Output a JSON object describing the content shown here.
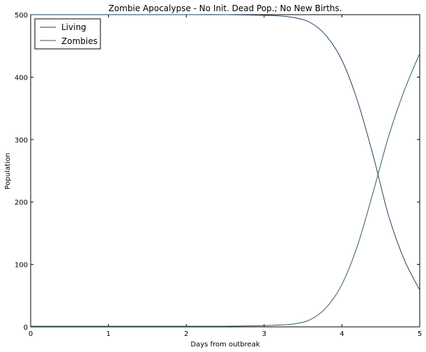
{
  "chart_data": {
    "type": "line",
    "title": "Zombie Apocalypse - No Init. Dead Pop.; No New Births.",
    "xlabel": "Days from outbreak",
    "ylabel": "Population",
    "xlim": [
      0,
      5
    ],
    "ylim": [
      0,
      500
    ],
    "xticks": [
      "0",
      "1",
      "2",
      "3",
      "4",
      "5"
    ],
    "yticks": [
      "0",
      "100",
      "200",
      "300",
      "400",
      "500"
    ],
    "grid": false,
    "legend_position": "top-left",
    "series": [
      {
        "name": "Living",
        "color": "#1f3f5f",
        "x": [
          0,
          0.5,
          1,
          1.5,
          2,
          2.5,
          3,
          3.2,
          3.4,
          3.6,
          3.8,
          4.0,
          4.2,
          4.4,
          4.6,
          4.8,
          5.0
        ],
        "y": [
          500,
          500,
          500,
          500,
          500,
          500,
          499,
          498,
          495,
          487,
          466,
          427,
          362,
          275,
          178,
          108,
          59
        ]
      },
      {
        "name": "Zombies",
        "color": "#2f5f4f",
        "x": [
          0,
          0.5,
          1,
          1.5,
          2,
          2.5,
          3,
          3.2,
          3.4,
          3.6,
          3.8,
          4.0,
          4.2,
          4.4,
          4.6,
          4.8,
          5.0
        ],
        "y": [
          1,
          1,
          1,
          1,
          1,
          1,
          2,
          3,
          5,
          12,
          31,
          68,
          130,
          215,
          305,
          378,
          438
        ]
      }
    ]
  }
}
